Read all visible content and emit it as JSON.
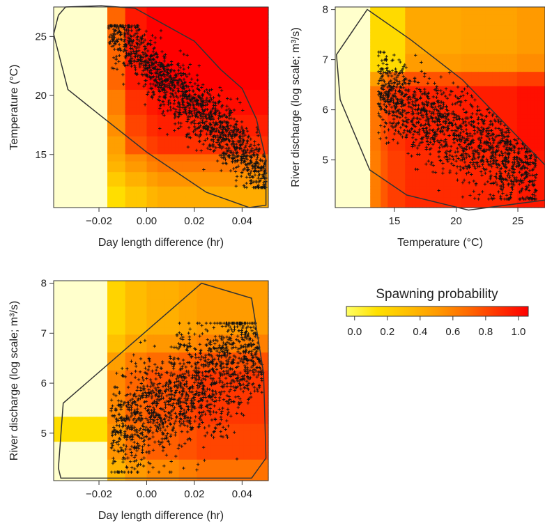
{
  "colors": {
    "scale": [
      "#ffff66",
      "#ffe100",
      "#ffc000",
      "#ff9a00",
      "#ff6a00",
      "#ff3300",
      "#ff0000"
    ],
    "low": "#ffffcc",
    "hull": "#333333",
    "points": "#111111"
  },
  "legend": {
    "title": "Spawning probability",
    "ticks": [
      "0.0",
      "0.2",
      "0.4",
      "0.6",
      "0.8",
      "1.0"
    ],
    "tick_values": [
      0.0,
      0.2,
      0.4,
      0.6,
      0.8,
      1.0
    ],
    "range": [
      -0.05,
      1.06
    ]
  },
  "chart_data": [
    {
      "type": "heatmap",
      "xlabel": "Day length difference (hr)",
      "ylabel": "Temperature (°C)",
      "xlim": [
        -0.039,
        0.051
      ],
      "ylim": [
        10.5,
        27.5
      ],
      "xticks": [
        -0.02,
        0.0,
        0.02,
        0.04
      ],
      "xtick_labels": [
        "−0.02",
        "0.00",
        "0.02",
        "0.04"
      ],
      "yticks": [
        15,
        20,
        25
      ],
      "ytick_labels": [
        "15",
        "20",
        "25"
      ],
      "hull": [
        [
          -0.037,
          26.8
        ],
        [
          -0.034,
          27.5
        ],
        [
          -0.019,
          27.6
        ],
        [
          -0.005,
          27.4
        ],
        [
          0.02,
          24.6
        ],
        [
          0.031,
          22.2
        ],
        [
          0.04,
          20.6
        ],
        [
          0.046,
          18.0
        ],
        [
          0.05,
          14.6
        ],
        [
          0.05,
          10.7
        ],
        [
          0.043,
          10.5
        ],
        [
          0.025,
          11.8
        ],
        [
          0.0,
          15.2
        ],
        [
          -0.02,
          18.4
        ],
        [
          -0.033,
          20.5
        ],
        [
          -0.039,
          25.2
        ]
      ],
      "points": {
        "count": 1400,
        "x_range": [
          -0.018,
          0.05
        ],
        "y_range": [
          12.0,
          25.9
        ],
        "trend": "negative"
      }
    },
    {
      "type": "heatmap",
      "xlabel": "Temperature (°C)",
      "ylabel": "River discharge (log scale; m³/s)",
      "xlim": [
        10.2,
        27.2
      ],
      "ylim": [
        4.05,
        8.05
      ],
      "xticks": [
        15,
        20,
        25
      ],
      "xtick_labels": [
        "15",
        "20",
        "25"
      ],
      "yticks": [
        5,
        6,
        7,
        8
      ],
      "ytick_labels": [
        "5",
        "6",
        "7",
        "8"
      ],
      "hull": [
        [
          12.8,
          8.0
        ],
        [
          16.3,
          7.4
        ],
        [
          20.5,
          6.6
        ],
        [
          27.2,
          4.9
        ],
        [
          27.2,
          4.2
        ],
        [
          21.0,
          4.0
        ],
        [
          16.0,
          4.3
        ],
        [
          13.0,
          4.8
        ],
        [
          10.6,
          6.2
        ],
        [
          10.3,
          7.1
        ]
      ],
      "points": {
        "count": 1400,
        "x_range": [
          13.5,
          26.5
        ],
        "y_range": [
          4.2,
          7.2
        ],
        "trend": "negative"
      }
    },
    {
      "type": "heatmap",
      "xlabel": "Day length difference (hr)",
      "ylabel": "River discharge (log scale; m³/s)",
      "xlim": [
        -0.039,
        0.051
      ],
      "ylim": [
        4.05,
        8.05
      ],
      "xticks": [
        -0.02,
        0.0,
        0.02,
        0.04
      ],
      "xtick_labels": [
        "−0.02",
        "0.00",
        "0.02",
        "0.04"
      ],
      "yticks": [
        5,
        6,
        7,
        8
      ],
      "ytick_labels": [
        "5",
        "6",
        "7",
        "8"
      ],
      "hull": [
        [
          0.023,
          8.0
        ],
        [
          0.044,
          7.7
        ],
        [
          0.049,
          6.2
        ],
        [
          0.05,
          4.5
        ],
        [
          0.044,
          4.1
        ],
        [
          -0.036,
          4.1
        ],
        [
          -0.037,
          4.3
        ],
        [
          -0.035,
          5.6
        ]
      ],
      "points": {
        "count": 1500,
        "x_range": [
          -0.017,
          0.05
        ],
        "y_range": [
          4.2,
          7.2
        ],
        "trend": "none"
      }
    }
  ]
}
